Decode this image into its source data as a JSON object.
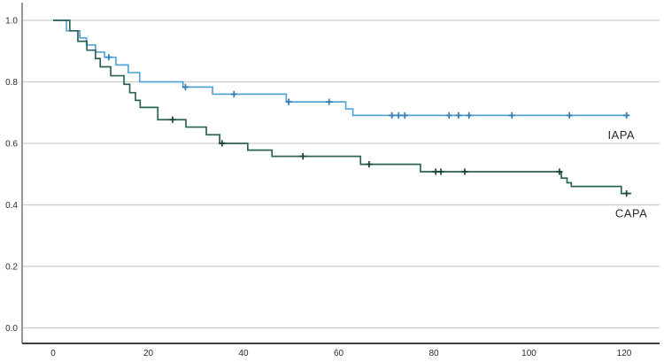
{
  "figure": {
    "background": "#ffffff",
    "plot": {
      "x_axis_color": "#3f3f3f",
      "y_axis_color": "#757575",
      "grid_color": "#cccccc",
      "tick_label_color": "#2b2b2b"
    }
  },
  "chart_data": {
    "type": "line",
    "subtype": "kaplan-meier-step-survival",
    "title": "",
    "xlabel": "",
    "ylabel": "",
    "xlim": [
      -6.5,
      128.2
    ],
    "ylim": [
      -0.05,
      1.06
    ],
    "x_ticks": [
      0,
      20,
      40,
      60,
      80,
      100,
      120
    ],
    "y_ticks": [
      "0.0",
      "0.2",
      "0.4",
      "0.6",
      "0.8",
      "1.0"
    ],
    "grid": "horizontal",
    "legend_position": "inline-end-labels",
    "series": [
      {
        "name": "IAPA",
        "color": "#56a5d8",
        "censor_color": "#2f7db8",
        "end_t": 121,
        "label_at": {
          "t": 119.4,
          "s": 0.615
        },
        "steps": [
          [
            0,
            1.0
          ],
          [
            2.8,
            0.966
          ],
          [
            5.6,
            0.943
          ],
          [
            7.0,
            0.92
          ],
          [
            8.9,
            0.897
          ],
          [
            10.8,
            0.88
          ],
          [
            13.2,
            0.855
          ],
          [
            15.8,
            0.83
          ],
          [
            18.2,
            0.8
          ],
          [
            27.3,
            0.783
          ],
          [
            33.5,
            0.76
          ],
          [
            49.0,
            0.735
          ],
          [
            61.5,
            0.712
          ],
          [
            63.0,
            0.691
          ]
        ],
        "censors": [
          [
            11.7,
            0.88
          ],
          [
            27.8,
            0.783
          ],
          [
            38.0,
            0.76
          ],
          [
            49.5,
            0.735
          ],
          [
            58.0,
            0.735
          ],
          [
            71.2,
            0.691
          ],
          [
            72.6,
            0.691
          ],
          [
            73.9,
            0.691
          ],
          [
            83.2,
            0.691
          ],
          [
            85.2,
            0.691
          ],
          [
            87.4,
            0.691
          ],
          [
            96.4,
            0.691
          ],
          [
            108.5,
            0.691
          ],
          [
            120.5,
            0.691
          ]
        ]
      },
      {
        "name": "CAPA",
        "color": "#2e6257",
        "censor_color": "#16443c",
        "end_t": 121.5,
        "label_at": {
          "t": 121.5,
          "s": 0.36
        },
        "steps": [
          [
            0,
            1.0
          ],
          [
            3.5,
            0.966
          ],
          [
            5.2,
            0.932
          ],
          [
            7.1,
            0.903
          ],
          [
            8.9,
            0.876
          ],
          [
            9.9,
            0.849
          ],
          [
            12.1,
            0.82
          ],
          [
            14.9,
            0.792
          ],
          [
            16.1,
            0.765
          ],
          [
            17.3,
            0.74
          ],
          [
            18.3,
            0.717
          ],
          [
            22.0,
            0.677
          ],
          [
            27.9,
            0.653
          ],
          [
            32.2,
            0.628
          ],
          [
            35.0,
            0.6
          ],
          [
            40.9,
            0.578
          ],
          [
            46.0,
            0.558
          ],
          [
            64.6,
            0.532
          ],
          [
            77.2,
            0.508
          ],
          [
            106.8,
            0.487
          ],
          [
            108.0,
            0.472
          ],
          [
            108.9,
            0.46
          ],
          [
            119.4,
            0.437
          ]
        ],
        "censors": [
          [
            25.1,
            0.677
          ],
          [
            35.5,
            0.6
          ],
          [
            52.5,
            0.558
          ],
          [
            66.4,
            0.532
          ],
          [
            80.4,
            0.508
          ],
          [
            81.5,
            0.508
          ],
          [
            86.5,
            0.508
          ],
          [
            106.4,
            0.508
          ],
          [
            120.5,
            0.437
          ]
        ]
      }
    ]
  }
}
